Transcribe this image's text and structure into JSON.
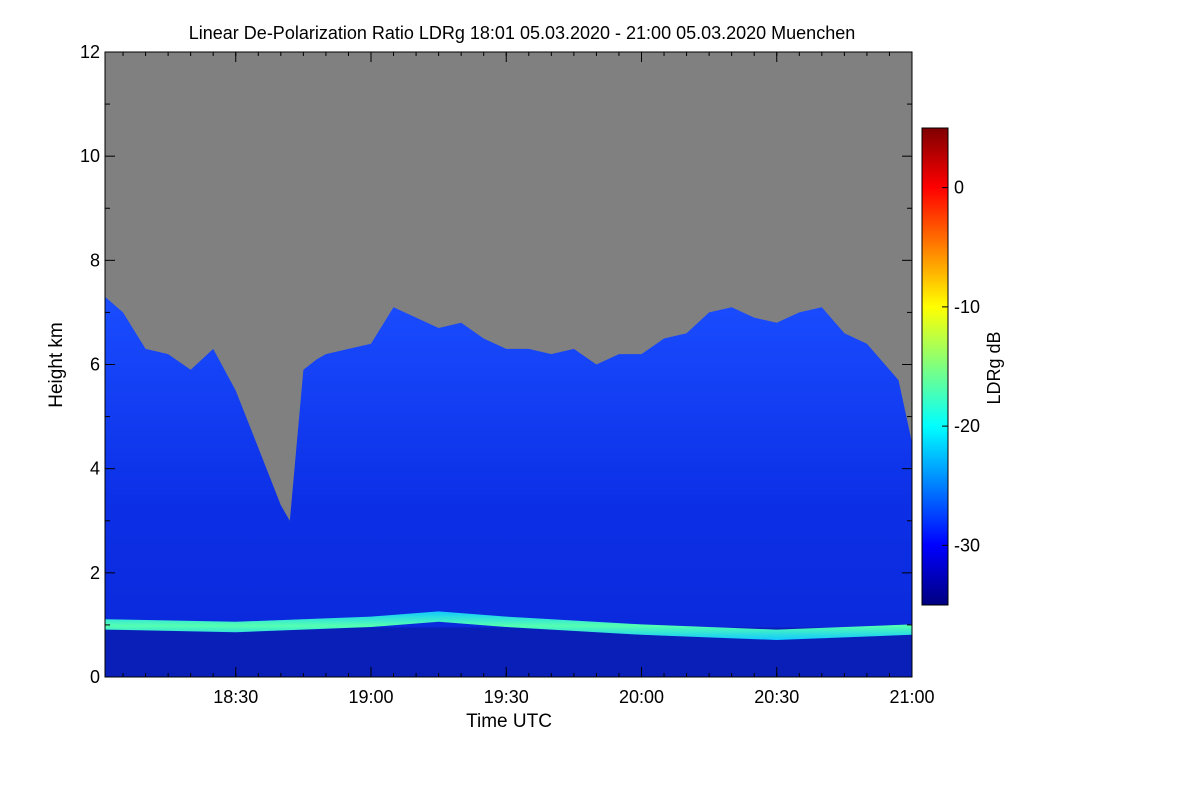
{
  "chart_data": {
    "type": "heatmap",
    "title": "Linear De-Polarization Ratio LDRg   18:01 05.03.2020 - 21:00 05.03.2020 Muenchen",
    "xlabel": "Time UTC",
    "ylabel": "Height km",
    "x_range_utc": [
      "18:01",
      "21:00"
    ],
    "x_ticks": [
      "18:30",
      "19:00",
      "19:30",
      "20:00",
      "20:30",
      "21:00"
    ],
    "y_range_km": [
      0,
      12
    ],
    "y_ticks": [
      "0",
      "2",
      "4",
      "6",
      "8",
      "10",
      "12"
    ],
    "colorbar": {
      "label": "LDRg dB",
      "range_db": [
        -35,
        5
      ],
      "ticks": [
        "0",
        "-10",
        "-20",
        "-30"
      ],
      "colormap": [
        "#00007f",
        "#0000ff",
        "#007fff",
        "#00ffff",
        "#7fff7f",
        "#ffff00",
        "#ff7f00",
        "#ff0000",
        "#7f0000"
      ]
    },
    "no_signal_color": "#808080",
    "cloud_top_profile": {
      "time_utc": [
        "18:01",
        "18:05",
        "18:10",
        "18:15",
        "18:20",
        "18:25",
        "18:30",
        "18:35",
        "18:40",
        "18:42",
        "18:45",
        "18:48",
        "18:50",
        "18:55",
        "19:00",
        "19:05",
        "19:10",
        "19:15",
        "19:20",
        "19:25",
        "19:30",
        "19:35",
        "19:40",
        "19:45",
        "19:50",
        "19:55",
        "20:00",
        "20:05",
        "20:10",
        "20:15",
        "20:20",
        "20:25",
        "20:30",
        "20:35",
        "20:40",
        "20:45",
        "20:50",
        "20:55",
        "20:57",
        "21:00"
      ],
      "top_km": [
        7.3,
        7.0,
        6.3,
        6.2,
        5.9,
        6.3,
        5.5,
        4.4,
        3.3,
        3.0,
        5.9,
        6.1,
        6.2,
        6.3,
        6.4,
        7.1,
        6.9,
        6.7,
        6.8,
        6.5,
        6.3,
        6.3,
        6.2,
        6.3,
        6.0,
        6.2,
        6.2,
        6.5,
        6.6,
        7.0,
        7.1,
        6.9,
        6.8,
        7.0,
        7.1,
        6.6,
        6.4,
        5.9,
        5.7,
        4.5
      ]
    },
    "boundary_layer": {
      "time_utc": [
        "18:01",
        "18:30",
        "19:00",
        "19:15",
        "19:30",
        "20:00",
        "20:30",
        "21:00"
      ],
      "top_km": [
        1.05,
        1.0,
        1.1,
        1.2,
        1.1,
        0.95,
        0.85,
        0.95
      ],
      "ldr_db": -20
    },
    "cloud_layer_ldr_db": -30,
    "near_surface_ldr_db": -34
  }
}
